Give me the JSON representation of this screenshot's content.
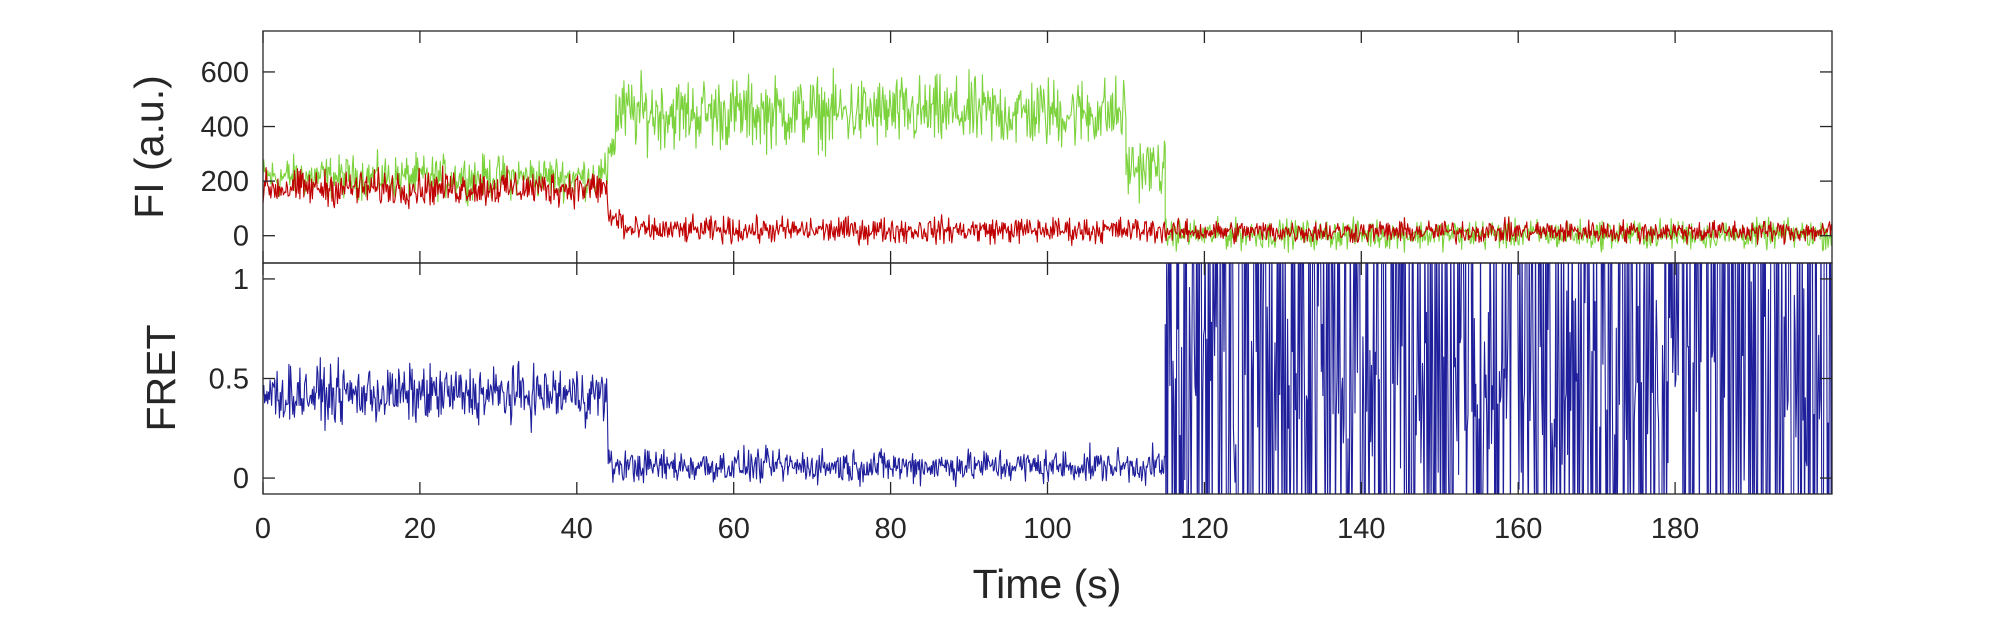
{
  "chart_data": [
    {
      "type": "line",
      "panel": "top",
      "ylabel": "FI (a.u.)",
      "xlim": [
        0,
        200
      ],
      "ylim": [
        -100,
        750
      ],
      "yticks": [
        0,
        200,
        400,
        600
      ],
      "ytick_labels": [
        "0",
        "200",
        "400",
        "600"
      ],
      "grid": false,
      "series": [
        {
          "color": "#7cd23c",
          "segments": [
            {
              "x": [
                0,
                44
              ],
              "mean": 215,
              "noise": 65
            },
            {
              "x": [
                44,
                45
              ],
              "mean": 330,
              "noise": 60
            },
            {
              "x": [
                45,
                110
              ],
              "mean": 450,
              "noise": 110
            },
            {
              "x": [
                110,
                115
              ],
              "mean": 250,
              "noise": 90
            },
            {
              "x": [
                115,
                200
              ],
              "mean": 5,
              "noise": 45
            }
          ]
        },
        {
          "color": "#c00000",
          "segments": [
            {
              "x": [
                0,
                44
              ],
              "mean": 175,
              "noise": 55
            },
            {
              "x": [
                44,
                46
              ],
              "mean": 60,
              "noise": 50
            },
            {
              "x": [
                46,
                115
              ],
              "mean": 20,
              "noise": 40
            },
            {
              "x": [
                115,
                200
              ],
              "mean": 15,
              "noise": 35
            }
          ]
        }
      ]
    },
    {
      "type": "line",
      "panel": "bottom",
      "ylabel": "FRET",
      "xlabel": "Time (s)",
      "xlim": [
        0,
        200
      ],
      "ylim": [
        -0.08,
        1.08
      ],
      "yticks": [
        0,
        0.5,
        1
      ],
      "ytick_labels": [
        "0",
        "0.5",
        "1"
      ],
      "xticks": [
        0,
        20,
        40,
        60,
        80,
        100,
        120,
        140,
        160,
        180
      ],
      "xtick_labels": [
        "0",
        "20",
        "40",
        "60",
        "80",
        "100",
        "120",
        "140",
        "160",
        "180"
      ],
      "grid": false,
      "series": [
        {
          "color": "#1f1f9c",
          "segments": [
            {
              "x": [
                0,
                44
              ],
              "mean": 0.42,
              "noise": 0.12
            },
            {
              "x": [
                44,
                115
              ],
              "mean": 0.06,
              "noise": 0.07
            },
            {
              "x": [
                115,
                200
              ],
              "mean": 0.5,
              "noise": 0.9,
              "clip": [
                -0.08,
                1.08
              ]
            }
          ]
        }
      ]
    }
  ]
}
